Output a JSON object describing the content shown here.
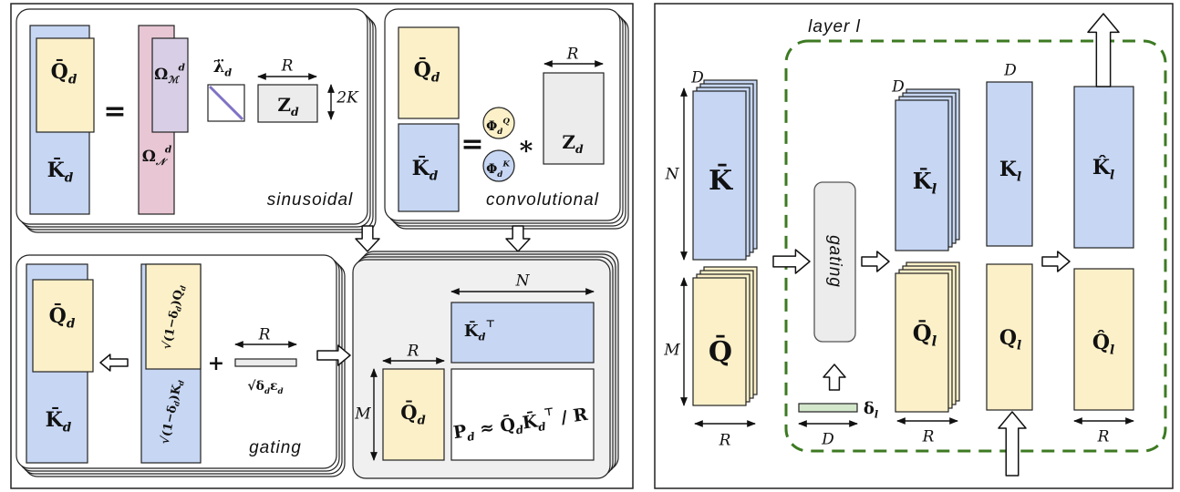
{
  "sinusoidal_panel": {
    "caption": "sinusoidal",
    "q": {
      "main": "Q̄",
      "sub": "d"
    },
    "k": {
      "main": "K̄",
      "sub": "d"
    },
    "equals": "=",
    "omega_m": {
      "main": "Ω",
      "sub": "ℳ",
      "sup": "d"
    },
    "omega_n": {
      "main": "Ω",
      "sub": "𝒩",
      "sup": "d"
    },
    "lambda": {
      "main": "λ̈",
      "sub": "d"
    },
    "r": "R",
    "two_k": "2K",
    "z": {
      "main": "Z",
      "sub": "d"
    }
  },
  "convolutional_panel": {
    "caption": "convolutional",
    "q": {
      "main": "Q̄",
      "sub": "d"
    },
    "k": {
      "main": "K̄",
      "sub": "d"
    },
    "equals": "=",
    "phi_q": {
      "main": "Φ",
      "sub": "d",
      "sup": "Q"
    },
    "phi_k": {
      "main": "Φ",
      "sub": "d",
      "sup": "K"
    },
    "conv": "∗",
    "r": "R",
    "z": {
      "main": "Z",
      "sub": "d"
    }
  },
  "gating_panel": {
    "caption": "gating",
    "q": {
      "main": "Q̄",
      "sub": "d"
    },
    "k": {
      "main": "K̄",
      "sub": "d"
    },
    "gated_q": [
      {
        "main": "√(1−δ",
        "sub": "d"
      },
      {
        "main": ")Q",
        "sub": "d"
      }
    ],
    "gated_k": [
      {
        "main": "√(1−δ",
        "sub": "d"
      },
      {
        "main": ")K",
        "sub": "d"
      }
    ],
    "plus": "+",
    "r": "R",
    "noise": [
      {
        "main": "√δ",
        "sub": "d"
      },
      {
        "main": "ε",
        "sub": "d"
      }
    ]
  },
  "result_panel": {
    "n": "N",
    "m": "M",
    "r": "R",
    "kt": {
      "main": "K̄",
      "sub": "d",
      "sup": "⊤"
    },
    "q": {
      "main": "Q̄",
      "sub": "d"
    },
    "formula": [
      {
        "main": "P",
        "sub": "d"
      },
      {
        "main": " ≈ Q̄",
        "sub": "d"
      },
      {
        "main": "K̄",
        "sub": "d",
        "sup": "⊤"
      },
      {
        "main": " / R"
      }
    ]
  },
  "layer_panel": {
    "title": "layer l",
    "d_k": "D",
    "n": "N",
    "k": {
      "main": "K̄"
    },
    "m": "M",
    "q": {
      "main": "Q̄"
    },
    "r_in": "R",
    "gating": "gating",
    "delta": {
      "main": "δ",
      "sub": "l"
    },
    "d_delta": "D",
    "d_kl": "D",
    "kl": {
      "main": "K̄",
      "sub": "l"
    },
    "ql": {
      "main": "Q̄",
      "sub": "l"
    },
    "r_l": "R",
    "d_k2": "D",
    "k2": {
      "main": "K",
      "sub": "l"
    },
    "q2": {
      "main": "Q",
      "sub": "l"
    },
    "k_hat": {
      "main": "K̂",
      "sub": "l"
    },
    "q_hat": {
      "main": "Q̂",
      "sub": "l"
    },
    "r_out": "R"
  }
}
